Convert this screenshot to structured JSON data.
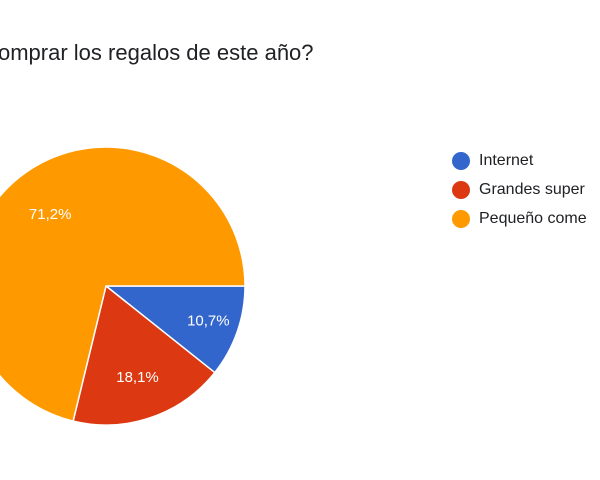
{
  "chart_data": {
    "type": "pie",
    "title": "omprar los regalos de este año?",
    "slices": [
      {
        "label": "Internet",
        "value": 10.7,
        "value_label": "10,7%",
        "color": "#3366cc"
      },
      {
        "label": "Grandes super",
        "value": 18.1,
        "value_label": "18,1%",
        "color": "#dc3912"
      },
      {
        "label": "Pequeño come",
        "value": 71.2,
        "value_label": "71,2%",
        "color": "#ff9900"
      }
    ],
    "legend_position": "right"
  }
}
